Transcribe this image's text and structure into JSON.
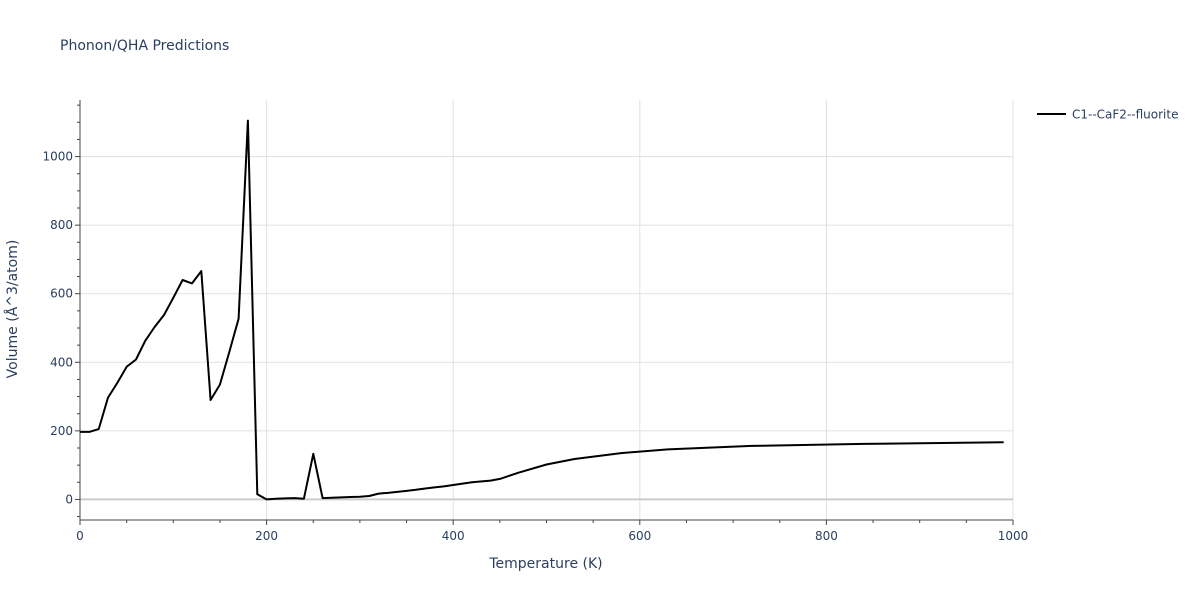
{
  "chart_data": {
    "type": "line",
    "title": "Phonon/QHA Predictions",
    "xlabel": "Temperature (K)",
    "ylabel": "Volume (Å^3/atom)",
    "xlim": [
      0,
      1000
    ],
    "ylim": [
      -60,
      1165
    ],
    "xticks": [
      0,
      200,
      400,
      600,
      800,
      1000
    ],
    "yticks": [
      0,
      200,
      400,
      600,
      800,
      1000
    ],
    "grid": true,
    "legend_position": "top-right",
    "series": [
      {
        "name": "C1--CaF2--fluorite",
        "color": "#000000",
        "x": [
          0,
          10,
          20,
          30,
          40,
          50,
          60,
          70,
          80,
          90,
          100,
          110,
          120,
          130,
          140,
          150,
          160,
          170,
          180,
          190,
          200,
          210,
          220,
          230,
          240,
          250,
          260,
          270,
          280,
          290,
          300,
          310,
          320,
          330,
          340,
          350,
          360,
          370,
          380,
          390,
          400,
          420,
          440,
          450,
          470,
          500,
          530,
          580,
          630,
          720,
          840,
          990
        ],
        "y": [
          197,
          197,
          205,
          297,
          340,
          387,
          408,
          463,
          503,
          538,
          588,
          640,
          630,
          666,
          290,
          335,
          430,
          527,
          1105,
          15,
          0,
          2,
          3,
          4,
          2,
          133,
          4,
          5,
          6,
          7,
          8,
          10,
          17,
          19,
          22,
          25,
          28,
          32,
          35,
          38,
          42,
          50,
          55,
          60,
          78,
          102,
          118,
          135,
          146,
          156,
          162,
          167
        ]
      }
    ]
  }
}
